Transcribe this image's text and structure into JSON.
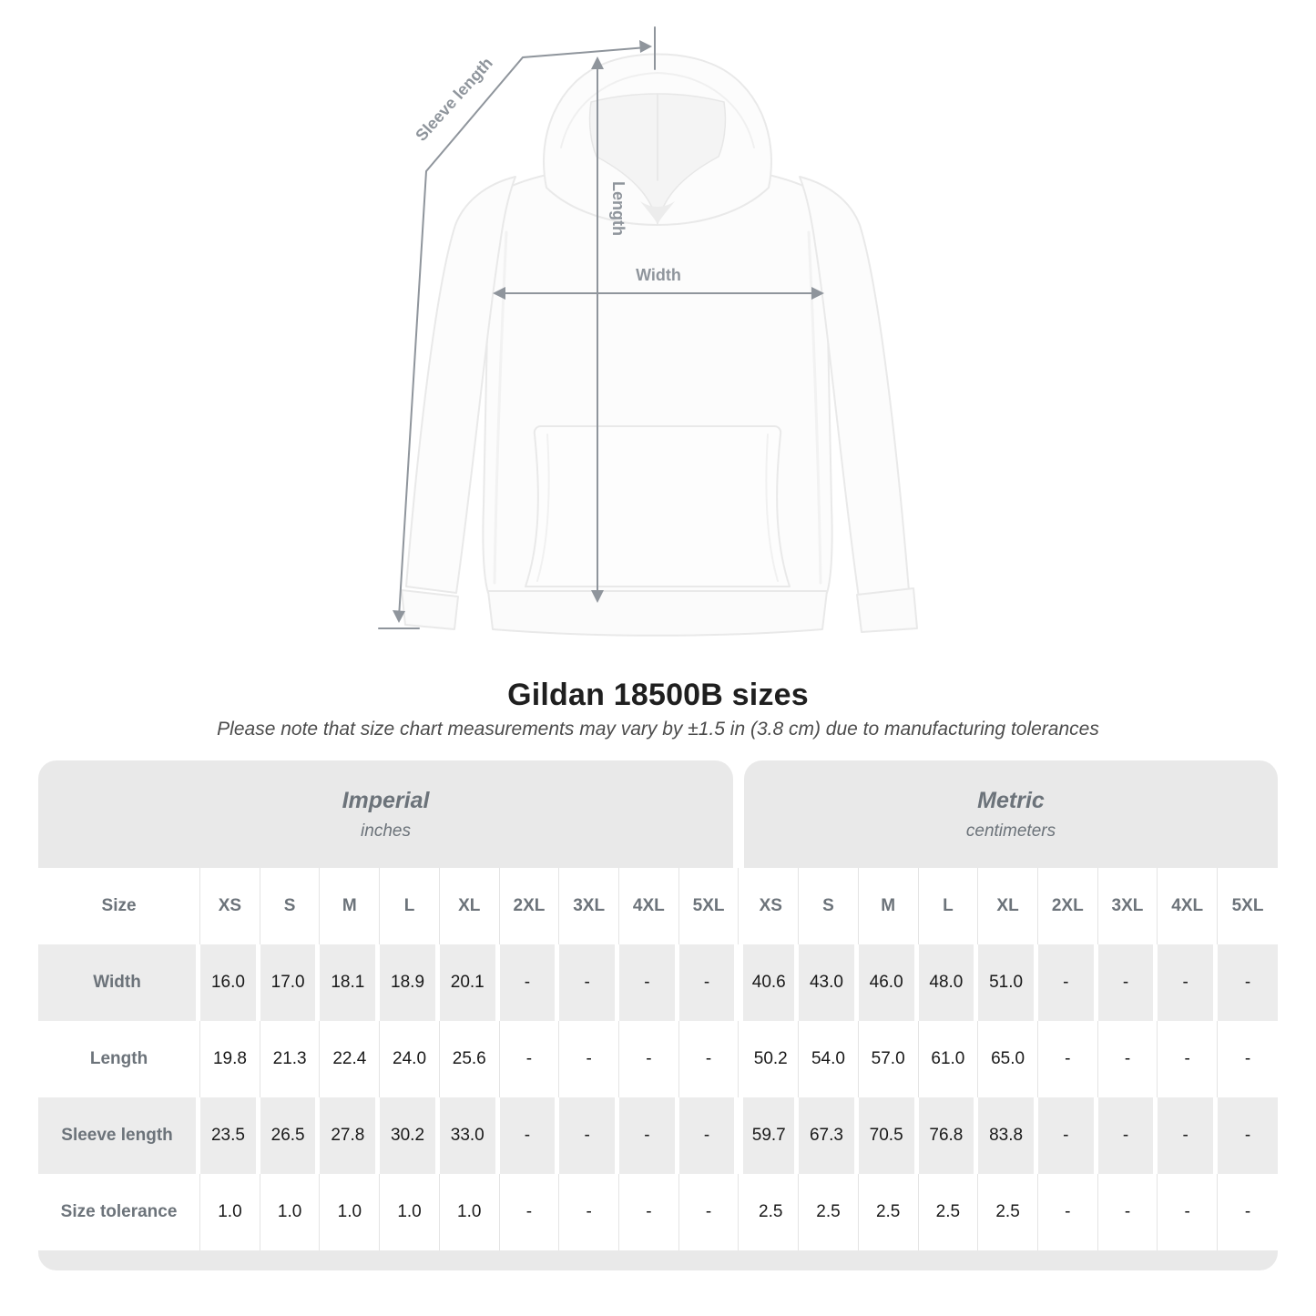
{
  "diagram": {
    "sleeve_length_label": "Sleeve length",
    "length_label": "Length",
    "width_label": "Width"
  },
  "title": "Gildan 18500B sizes",
  "subtitle": "Please note that size chart measurements may vary by ±1.5 in (3.8 cm) due to manufacturing tolerances",
  "table": {
    "unit_groups": [
      {
        "name": "Imperial",
        "unit": "inches"
      },
      {
        "name": "Metric",
        "unit": "centimeters"
      }
    ],
    "size_label": "Size",
    "sizes": [
      "XS",
      "S",
      "M",
      "L",
      "XL",
      "2XL",
      "3XL",
      "4XL",
      "5XL"
    ],
    "rows": [
      {
        "label": "Width",
        "imperial": [
          "16.0",
          "17.0",
          "18.1",
          "18.9",
          "20.1",
          "-",
          "-",
          "-",
          "-"
        ],
        "metric": [
          "40.6",
          "43.0",
          "46.0",
          "48.0",
          "51.0",
          "-",
          "-",
          "-",
          "-"
        ]
      },
      {
        "label": "Length",
        "imperial": [
          "19.8",
          "21.3",
          "22.4",
          "24.0",
          "25.6",
          "-",
          "-",
          "-",
          "-"
        ],
        "metric": [
          "50.2",
          "54.0",
          "57.0",
          "61.0",
          "65.0",
          "-",
          "-",
          "-",
          "-"
        ]
      },
      {
        "label": "Sleeve length",
        "imperial": [
          "23.5",
          "26.5",
          "27.8",
          "30.2",
          "33.0",
          "-",
          "-",
          "-",
          "-"
        ],
        "metric": [
          "59.7",
          "67.3",
          "70.5",
          "76.8",
          "83.8",
          "-",
          "-",
          "-",
          "-"
        ]
      },
      {
        "label": "Size tolerance",
        "imperial": [
          "1.0",
          "1.0",
          "1.0",
          "1.0",
          "1.0",
          "-",
          "-",
          "-",
          "-"
        ],
        "metric": [
          "2.5",
          "2.5",
          "2.5",
          "2.5",
          "2.5",
          "-",
          "-",
          "-",
          "-"
        ]
      }
    ]
  },
  "chart_data": {
    "type": "table",
    "title": "Gildan 18500B sizes",
    "note": "Please note that size chart measurements may vary by ±1.5 in (3.8 cm) due to manufacturing tolerances",
    "column_groups": [
      "Imperial (inches)",
      "Metric (centimeters)"
    ],
    "columns": [
      "XS",
      "S",
      "M",
      "L",
      "XL",
      "2XL",
      "3XL",
      "4XL",
      "5XL"
    ],
    "rows": [
      {
        "measure": "Width",
        "imperial_in": [
          16.0,
          17.0,
          18.1,
          18.9,
          20.1,
          null,
          null,
          null,
          null
        ],
        "metric_cm": [
          40.6,
          43.0,
          46.0,
          48.0,
          51.0,
          null,
          null,
          null,
          null
        ]
      },
      {
        "measure": "Length",
        "imperial_in": [
          19.8,
          21.3,
          22.4,
          24.0,
          25.6,
          null,
          null,
          null,
          null
        ],
        "metric_cm": [
          50.2,
          54.0,
          57.0,
          61.0,
          65.0,
          null,
          null,
          null,
          null
        ]
      },
      {
        "measure": "Sleeve length",
        "imperial_in": [
          23.5,
          26.5,
          27.8,
          30.2,
          33.0,
          null,
          null,
          null,
          null
        ],
        "metric_cm": [
          59.7,
          67.3,
          70.5,
          76.8,
          83.8,
          null,
          null,
          null,
          null
        ]
      },
      {
        "measure": "Size tolerance",
        "imperial_in": [
          1.0,
          1.0,
          1.0,
          1.0,
          1.0,
          null,
          null,
          null,
          null
        ],
        "metric_cm": [
          2.5,
          2.5,
          2.5,
          2.5,
          2.5,
          null,
          null,
          null,
          null
        ]
      }
    ]
  },
  "colors": {
    "header_band_gray": "#e9e9e9",
    "row_stripe_gray": "#ececec",
    "header_text_gray": "#6c737a",
    "annotation_gray": "#8f959c",
    "value_text": "#191919",
    "title_text": "#1f1f1f"
  }
}
